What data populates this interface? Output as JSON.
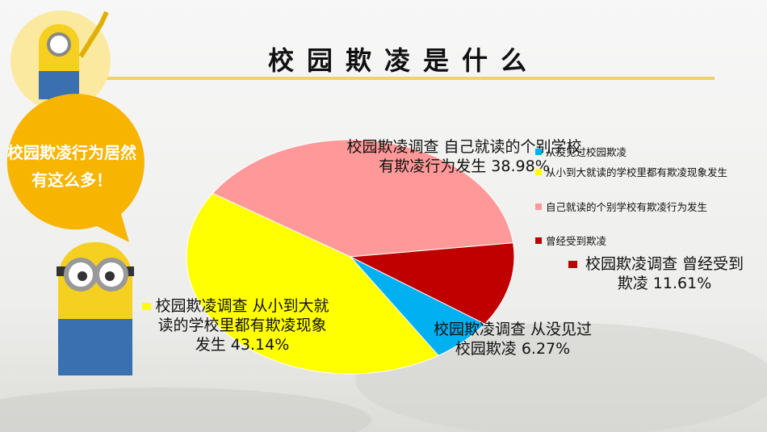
{
  "title": "校园欺凌是什么",
  "callout": "校园欺凌行为居然有这么多！",
  "chart_data": {
    "type": "pie",
    "series_name": "校园欺凌调查",
    "categories": [
      "从没见过校园欺凌",
      "从小到大就读的学校里都有欺凌现象发生",
      "自己就读的个别学校有欺凌行为发生",
      "曾经受到欺凌"
    ],
    "values": [
      6.27,
      43.14,
      38.98,
      11.61
    ],
    "value_labels": [
      "6.27%",
      "43.14%",
      "38.98%",
      "11.61%"
    ],
    "colors": [
      "#00b0f0",
      "#ffff00",
      "#ff9999",
      "#c00000"
    ],
    "legend": "right"
  }
}
